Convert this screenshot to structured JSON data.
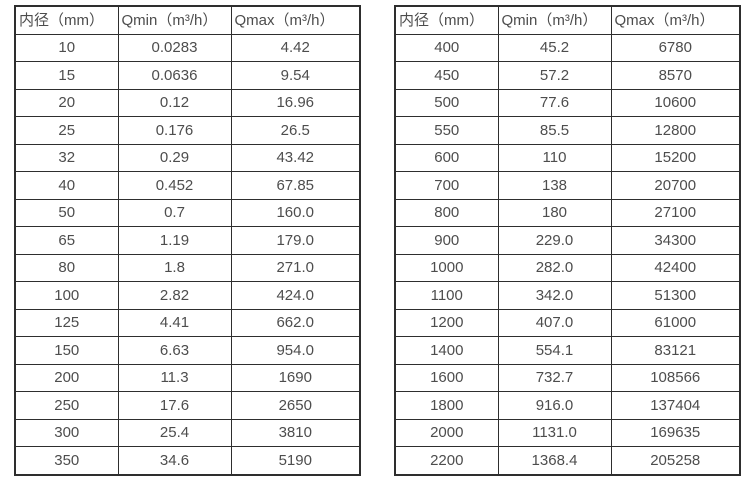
{
  "page": {
    "background_color": "#ffffff",
    "border_color": "#2e2e2e",
    "text_color": "#4d4d4d"
  },
  "chart_data": [
    {
      "type": "table",
      "title": "",
      "columns": [
        "内径（mm）",
        "Qmin（m³/h）",
        "Qmax（m³/h）"
      ],
      "rows": [
        [
          "10",
          "0.0283",
          "4.42"
        ],
        [
          "15",
          "0.0636",
          "9.54"
        ],
        [
          "20",
          "0.12",
          "16.96"
        ],
        [
          "25",
          "0.176",
          "26.5"
        ],
        [
          "32",
          "0.29",
          "43.42"
        ],
        [
          "40",
          "0.452",
          "67.85"
        ],
        [
          "50",
          "0.7",
          "160.0"
        ],
        [
          "65",
          "1.19",
          "179.0"
        ],
        [
          "80",
          "1.8",
          "271.0"
        ],
        [
          "100",
          "2.82",
          "424.0"
        ],
        [
          "125",
          "4.41",
          "662.0"
        ],
        [
          "150",
          "6.63",
          "954.0"
        ],
        [
          "200",
          "11.3",
          "1690"
        ],
        [
          "250",
          "17.6",
          "2650"
        ],
        [
          "300",
          "25.4",
          "3810"
        ],
        [
          "350",
          "34.6",
          "5190"
        ]
      ]
    },
    {
      "type": "table",
      "title": "",
      "columns": [
        "内径（mm）",
        "Qmin（m³/h）",
        "Qmax（m³/h）"
      ],
      "rows": [
        [
          "400",
          "45.2",
          "6780"
        ],
        [
          "450",
          "57.2",
          "8570"
        ],
        [
          "500",
          "77.6",
          "10600"
        ],
        [
          "550",
          "85.5",
          "12800"
        ],
        [
          "600",
          "110",
          "15200"
        ],
        [
          "700",
          "138",
          "20700"
        ],
        [
          "800",
          "180",
          "27100"
        ],
        [
          "900",
          "229.0",
          "34300"
        ],
        [
          "1000",
          "282.0",
          "42400"
        ],
        [
          "1100",
          "342.0",
          "51300"
        ],
        [
          "1200",
          "407.0",
          "61000"
        ],
        [
          "1400",
          "554.1",
          "83121"
        ],
        [
          "1600",
          "732.7",
          "108566"
        ],
        [
          "1800",
          "916.0",
          "137404"
        ],
        [
          "2000",
          "1131.0",
          "169635"
        ],
        [
          "2200",
          "1368.4",
          "205258"
        ]
      ]
    }
  ]
}
